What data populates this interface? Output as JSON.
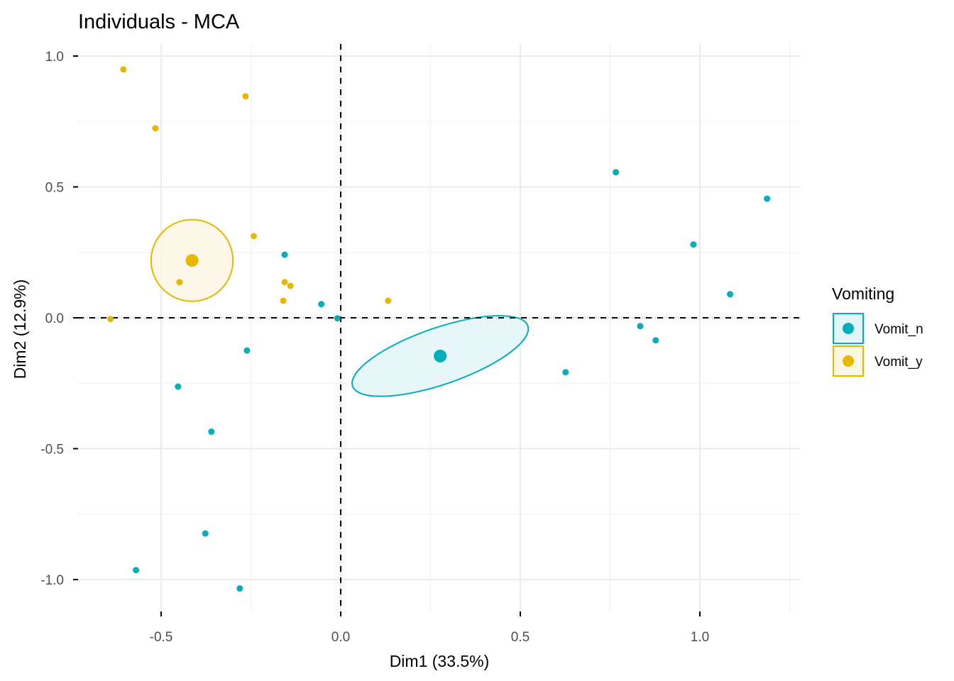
{
  "chart_data": {
    "type": "scatter",
    "title": "Individuals - MCA",
    "xlabel": "Dim1 (33.5%)",
    "ylabel": "Dim2 (12.9%)",
    "xlim": [
      -0.74,
      1.27
    ],
    "ylim": [
      -1.12,
      1.05
    ],
    "x_ticks": [
      -0.5,
      0.0,
      0.5,
      1.0
    ],
    "x_tick_labels": [
      "-0.5",
      "0.0",
      "0.5",
      "1.0"
    ],
    "y_ticks": [
      1.0,
      0.5,
      0.0,
      -0.5,
      -1.0
    ],
    "y_tick_labels": [
      "1.0",
      "0.5",
      "0.0",
      "-0.5",
      "-1.0"
    ],
    "x_minor_ticks": [
      -0.25,
      0.25,
      0.75,
      1.25
    ],
    "y_minor_ticks": [
      0.75,
      0.25,
      -0.25,
      -0.75
    ],
    "grid": true,
    "reference_lines": {
      "x": 0,
      "y": 0,
      "style": "dashed"
    },
    "legend": {
      "title": "Vomiting",
      "placement": "right",
      "entries": [
        "Vomit_n",
        "Vomit_y"
      ]
    },
    "series": [
      {
        "name": "Vomit_n",
        "color": "#00AFBB",
        "fill": "#E3F5F7",
        "centroid": {
          "x": 0.277,
          "y": -0.146
        },
        "ellipse": {
          "rx": 0.258,
          "ry": 0.108,
          "angle_deg": -19
        },
        "points": [
          {
            "x": -0.156,
            "y": 0.241
          },
          {
            "x": -0.054,
            "y": 0.052
          },
          {
            "x": -0.009,
            "y": -0.002
          },
          {
            "x": -0.261,
            "y": -0.125
          },
          {
            "x": -0.453,
            "y": -0.263
          },
          {
            "x": -0.36,
            "y": -0.435
          },
          {
            "x": -0.377,
            "y": -0.824
          },
          {
            "x": -0.57,
            "y": -0.964
          },
          {
            "x": -0.281,
            "y": -1.034
          },
          {
            "x": 0.766,
            "y": 0.556
          },
          {
            "x": 1.187,
            "y": 0.455
          },
          {
            "x": 0.982,
            "y": 0.28
          },
          {
            "x": 1.084,
            "y": 0.09
          },
          {
            "x": 0.834,
            "y": -0.032
          },
          {
            "x": 0.877,
            "y": -0.086
          },
          {
            "x": 0.626,
            "y": -0.208
          }
        ]
      },
      {
        "name": "Vomit_y",
        "color": "#E7B800",
        "fill": "#FCF6E5",
        "centroid": {
          "x": -0.414,
          "y": 0.219
        },
        "ellipse": {
          "rx": 0.114,
          "ry": 0.156,
          "angle_deg": 0
        },
        "points": [
          {
            "x": -0.605,
            "y": 0.949
          },
          {
            "x": -0.265,
            "y": 0.846
          },
          {
            "x": -0.516,
            "y": 0.724
          },
          {
            "x": -0.242,
            "y": 0.312
          },
          {
            "x": -0.449,
            "y": 0.136
          },
          {
            "x": -0.156,
            "y": 0.136
          },
          {
            "x": -0.14,
            "y": 0.122
          },
          {
            "x": -0.16,
            "y": 0.065
          },
          {
            "x": 0.132,
            "y": 0.065
          },
          {
            "x": -0.641,
            "y": -0.005
          }
        ]
      }
    ]
  }
}
